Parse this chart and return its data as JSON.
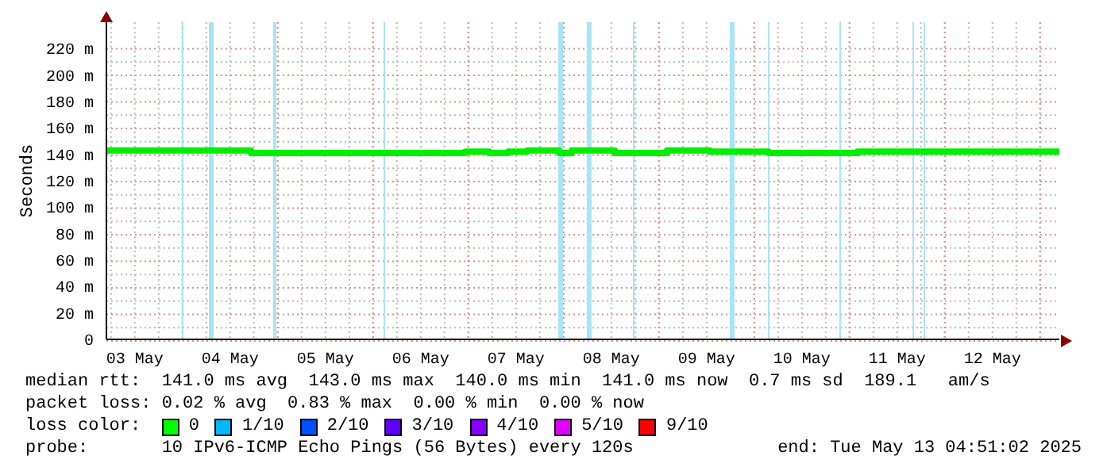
{
  "chart_data": {
    "type": "step",
    "ylabel": "Seconds",
    "xlim": [
      "2025-05-03T04:51",
      "2025-05-13T04:51"
    ],
    "xticks": [
      {
        "value": "2025-05-03T12:00",
        "label": "03 May"
      },
      {
        "value": "2025-05-04T12:00",
        "label": "04 May"
      },
      {
        "value": "2025-05-05T12:00",
        "label": "05 May"
      },
      {
        "value": "2025-05-06T12:00",
        "label": "06 May"
      },
      {
        "value": "2025-05-07T12:00",
        "label": "07 May"
      },
      {
        "value": "2025-05-08T12:00",
        "label": "08 May"
      },
      {
        "value": "2025-05-09T12:00",
        "label": "09 May"
      },
      {
        "value": "2025-05-10T12:00",
        "label": "10 May"
      },
      {
        "value": "2025-05-11T12:00",
        "label": "11 May"
      },
      {
        "value": "2025-05-12T12:00",
        "label": "12 May"
      }
    ],
    "ylim": [
      0,
      240
    ],
    "yticks": [
      0,
      {
        "value": 20,
        "label": "20 m"
      },
      {
        "value": 40,
        "label": "40 m"
      },
      {
        "value": 60,
        "label": "60 m"
      },
      {
        "value": 80,
        "label": "80 m"
      },
      {
        "value": 100,
        "label": "100 m"
      },
      {
        "value": 120,
        "label": "120 m"
      },
      {
        "value": 140,
        "label": "140 m"
      },
      {
        "value": 160,
        "label": "160 m"
      },
      {
        "value": 180,
        "label": "180 m"
      },
      {
        "value": 200,
        "label": "200 m"
      },
      {
        "value": 220,
        "label": "220 m"
      }
    ],
    "grid": true,
    "legend": false,
    "line_style": "solid",
    "marker": "none",
    "series": [
      {
        "color": "#00ee00",
        "x": [
          "2025-05-03T04:51",
          "2025-05-04T17:15",
          "2025-05-06T23:15",
          "2025-05-07T05:15",
          "2025-05-07T10:03",
          "2025-05-07T14:51",
          "2025-05-07T22:51",
          "2025-05-08T02:03",
          "2025-05-08T12:51",
          "2025-05-09T02:03",
          "2025-05-09T12:51",
          "2025-05-10T03:39",
          "2025-05-11T02:03",
          "2025-05-13T04:51"
        ],
        "values": [
          143,
          141,
          142,
          141,
          142,
          143,
          141,
          143,
          141,
          143,
          142,
          141,
          142,
          142
        ]
      }
    ],
    "bands": [
      {
        "axis": "x",
        "from": "2025-05-03T23:51",
        "to": "2025-05-04T00:15",
        "color": "#a8e4f8"
      },
      {
        "axis": "x",
        "from": "2025-05-04T06:39",
        "to": "2025-05-04T07:51",
        "color": "#a8e4f8"
      },
      {
        "axis": "x",
        "from": "2025-05-04T22:51",
        "to": "2025-05-04T23:39",
        "color": "#a8e4f8"
      },
      {
        "axis": "x",
        "from": "2025-05-06T02:39",
        "to": "2025-05-06T03:03",
        "color": "#a8e4f8"
      },
      {
        "axis": "x",
        "from": "2025-05-07T22:39",
        "to": "2025-05-07T23:51",
        "color": "#a8e4f8"
      },
      {
        "axis": "x",
        "from": "2025-05-08T05:51",
        "to": "2025-05-08T07:03",
        "color": "#a8e4f8"
      },
      {
        "axis": "x",
        "from": "2025-05-08T17:27",
        "to": "2025-05-08T17:51",
        "color": "#a8e4f8"
      },
      {
        "axis": "x",
        "from": "2025-05-09T17:51",
        "to": "2025-05-09T19:03",
        "color": "#a8e4f8"
      },
      {
        "axis": "x",
        "from": "2025-05-10T03:27",
        "to": "2025-05-10T03:51",
        "color": "#a8e4f8"
      },
      {
        "axis": "x",
        "from": "2025-05-10T21:27",
        "to": "2025-05-10T21:51",
        "color": "#a8e4f8"
      },
      {
        "axis": "x",
        "from": "2025-05-11T15:51",
        "to": "2025-05-11T16:15",
        "color": "#a8e4f8"
      },
      {
        "axis": "x",
        "from": "2025-05-11T18:39",
        "to": "2025-05-11T19:03",
        "color": "#a8e4f8"
      }
    ],
    "annotations": [
      "median rtt:  141.0 ms avg  143.0 ms max  140.0 ms min  141.0 ms now  0.7 ms sd  189.1   am/s",
      "packet loss: 0.02 % avg  0.83 % max  0.00 % min  0.00 % now",
      "loss color:",
      "0",
      "1/10",
      "2/10",
      "3/10",
      "4/10",
      "5/10",
      "9/10",
      "probe:       10 IPv6-ICMP Echo Pings (56 Bytes) every 120s",
      "end: Tue May 13 04:51:02 2025"
    ]
  }
}
